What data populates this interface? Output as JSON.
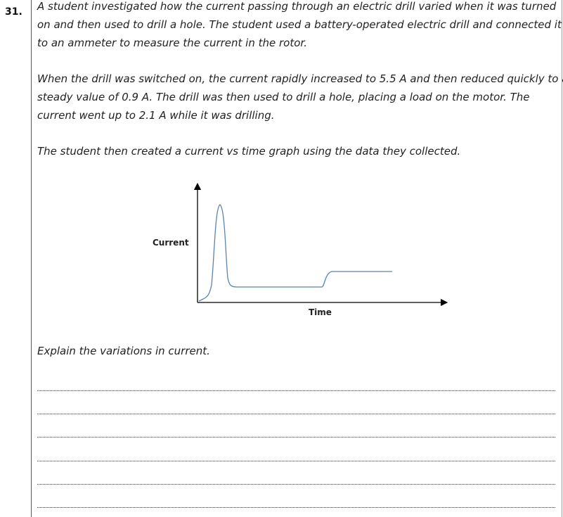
{
  "question": {
    "number": "31.",
    "intro_lines": [
      "A student investigated how the current passing through an electric drill varied when it was turned",
      "on and then used to drill a hole. The student used a battery-operated electric drill and connected it",
      "to an ammeter to measure the current in the rotor."
    ],
    "detail_lines": [
      "When the drill was switched on, the current rapidly increased to 5.5 A and then reduced quickly to a",
      "steady value of 0.9 A. The drill was then used to drill a hole, placing a load on the motor. The",
      "current went up to 2.1 A while it was drilling."
    ],
    "graph_intro": "The student then created a current vs time graph using the data they collected.",
    "prompt": "Explain the variations in current."
  },
  "graph": {
    "ylabel": "Current",
    "xlabel": "Time",
    "line_color": "#5b84b1",
    "axis_color": "#000000"
  },
  "answer_lines": 6
}
